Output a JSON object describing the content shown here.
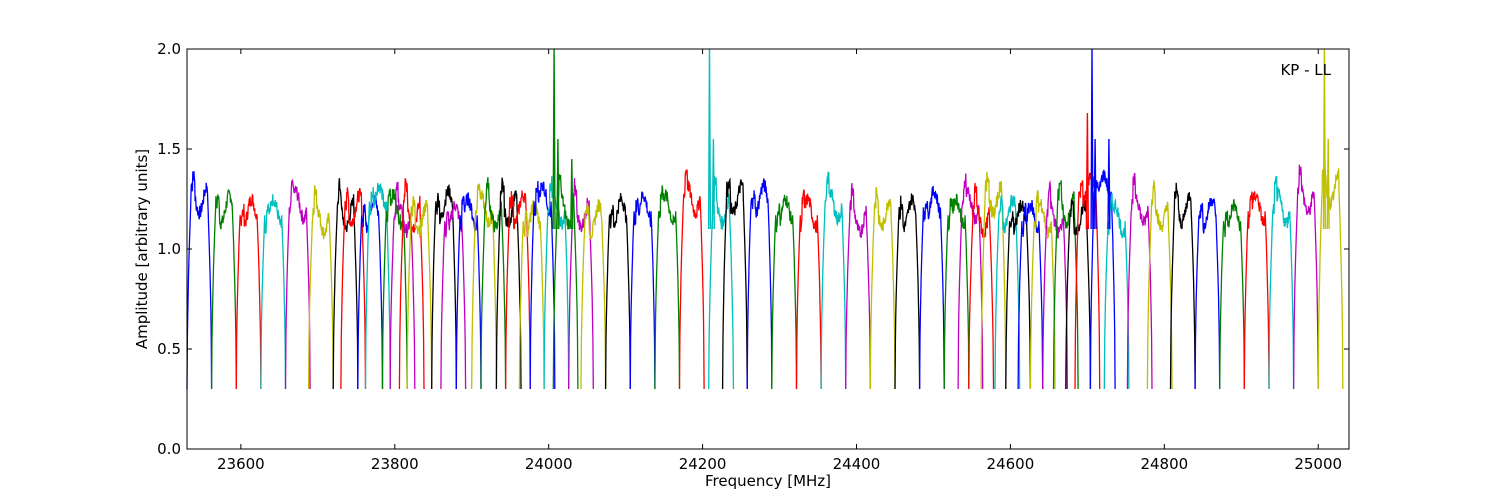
{
  "chart_data": {
    "type": "line",
    "title": "",
    "annotation": "KP - LL",
    "xlabel": "Frequency [MHz]",
    "ylabel": "Amplitude [arbitrary units]",
    "xlim": [
      23530,
      25040
    ],
    "ylim": [
      0.0,
      2.0
    ],
    "xticks": [
      23600,
      23800,
      24000,
      24200,
      24400,
      24600,
      24800,
      25000
    ],
    "yticks": [
      0.0,
      0.5,
      1.0,
      1.5,
      2.0
    ],
    "xtick_labels": [
      "23600",
      "23800",
      "24000",
      "24200",
      "24400",
      "24600",
      "24800",
      "25000"
    ],
    "ytick_labels": [
      "0.0",
      "0.5",
      "1.0",
      "1.5",
      "2.0"
    ],
    "grid": false,
    "legend": "none",
    "channel_width_mhz": 32,
    "series": [
      {
        "color": "#0000ff",
        "start": 23530,
        "level": 1.25
      },
      {
        "color": "#008000",
        "start": 23562,
        "level": 1.2
      },
      {
        "color": "#ff0000",
        "start": 23594,
        "level": 1.18
      },
      {
        "color": "#00bfbf",
        "start": 23626,
        "level": 1.18
      },
      {
        "color": "#bf00bf",
        "start": 23658,
        "level": 1.22
      },
      {
        "color": "#bfbf00",
        "start": 23688,
        "level": 1.15
      },
      {
        "color": "#000000",
        "start": 23720,
        "level": 1.18
      },
      {
        "color": "#ff0000",
        "start": 23730,
        "level": 1.2
      },
      {
        "color": "#0000ff",
        "start": 23752,
        "level": 1.18
      },
      {
        "color": "#00bfbf",
        "start": 23762,
        "level": 1.25
      },
      {
        "color": "#008000",
        "start": 23784,
        "level": 1.2
      },
      {
        "color": "#bf00bf",
        "start": 23794,
        "level": 1.16
      },
      {
        "color": "#ff0000",
        "start": 23806,
        "level": 1.18
      },
      {
        "color": "#bfbf00",
        "start": 23816,
        "level": 1.15
      },
      {
        "color": "#000000",
        "start": 23848,
        "level": 1.22
      },
      {
        "color": "#bf00bf",
        "start": 23860,
        "level": 1.15
      },
      {
        "color": "#0000ff",
        "start": 23880,
        "level": 1.18
      },
      {
        "color": "#bfbf00",
        "start": 23900,
        "level": 1.2
      },
      {
        "color": "#008000",
        "start": 23912,
        "level": 1.18
      },
      {
        "color": "#000000",
        "start": 23932,
        "level": 1.2
      },
      {
        "color": "#ff0000",
        "start": 23944,
        "level": 1.2
      },
      {
        "color": "#bfbf00",
        "start": 23962,
        "level": 1.15
      },
      {
        "color": "#0000ff",
        "start": 23976,
        "level": 1.25
      },
      {
        "color": "#00bfbf",
        "start": 23994,
        "level": 1.2
      },
      {
        "color": "#008000",
        "start": 24006,
        "level": 1.2
      },
      {
        "color": "#bf00bf",
        "start": 24026,
        "level": 1.18
      },
      {
        "color": "#bfbf00",
        "start": 24042,
        "level": 1.15
      },
      {
        "color": "#000000",
        "start": 24074,
        "level": 1.18
      },
      {
        "color": "#0000ff",
        "start": 24106,
        "level": 1.2
      },
      {
        "color": "#008000",
        "start": 24138,
        "level": 1.2
      },
      {
        "color": "#ff0000",
        "start": 24170,
        "level": 1.25
      },
      {
        "color": "#00bfbf",
        "start": 24208,
        "level": 1.2
      },
      {
        "color": "#000000",
        "start": 24226,
        "level": 1.25
      },
      {
        "color": "#0000ff",
        "start": 24258,
        "level": 1.25
      },
      {
        "color": "#008000",
        "start": 24290,
        "level": 1.18
      },
      {
        "color": "#ff0000",
        "start": 24322,
        "level": 1.18
      },
      {
        "color": "#00bfbf",
        "start": 24354,
        "level": 1.22
      },
      {
        "color": "#bf00bf",
        "start": 24386,
        "level": 1.15
      },
      {
        "color": "#bfbf00",
        "start": 24418,
        "level": 1.18
      },
      {
        "color": "#000000",
        "start": 24450,
        "level": 1.18
      },
      {
        "color": "#0000ff",
        "start": 24482,
        "level": 1.22
      },
      {
        "color": "#008000",
        "start": 24514,
        "level": 1.18
      },
      {
        "color": "#bf00bf",
        "start": 24532,
        "level": 1.22
      },
      {
        "color": "#ff0000",
        "start": 24546,
        "level": 1.15
      },
      {
        "color": "#bfbf00",
        "start": 24562,
        "level": 1.25
      },
      {
        "color": "#00bfbf",
        "start": 24580,
        "level": 1.18
      },
      {
        "color": "#000000",
        "start": 24594,
        "level": 1.15
      },
      {
        "color": "#0000ff",
        "start": 24610,
        "level": 1.15
      },
      {
        "color": "#bfbf00",
        "start": 24626,
        "level": 1.15
      },
      {
        "color": "#bf00bf",
        "start": 24642,
        "level": 1.15
      },
      {
        "color": "#008000",
        "start": 24656,
        "level": 1.2
      },
      {
        "color": "#000000",
        "start": 24672,
        "level": 1.15
      },
      {
        "color": "#ff0000",
        "start": 24684,
        "level": 1.3
      },
      {
        "color": "#0000ff",
        "start": 24704,
        "level": 1.3
      },
      {
        "color": "#00bfbf",
        "start": 24722,
        "level": 1.15
      },
      {
        "color": "#bf00bf",
        "start": 24752,
        "level": 1.2
      },
      {
        "color": "#bfbf00",
        "start": 24778,
        "level": 1.18
      },
      {
        "color": "#000000",
        "start": 24808,
        "level": 1.2
      },
      {
        "color": "#0000ff",
        "start": 24840,
        "level": 1.18
      },
      {
        "color": "#008000",
        "start": 24872,
        "level": 1.15
      },
      {
        "color": "#ff0000",
        "start": 24904,
        "level": 1.2
      },
      {
        "color": "#00bfbf",
        "start": 24936,
        "level": 1.2
      },
      {
        "color": "#bf00bf",
        "start": 24968,
        "level": 1.25
      },
      {
        "color": "#bfbf00",
        "start": 25000,
        "level": 1.3
      }
    ],
    "spikes": [
      {
        "color": "#008000",
        "x": 24007,
        "y": 2.0
      },
      {
        "color": "#008000",
        "x": 24012,
        "y": 1.55
      },
      {
        "color": "#008000",
        "x": 24030,
        "y": 1.45
      },
      {
        "color": "#00bfbf",
        "x": 24209,
        "y": 2.0
      },
      {
        "color": "#00bfbf",
        "x": 24214,
        "y": 1.55
      },
      {
        "color": "#ff0000",
        "x": 24700,
        "y": 1.68
      },
      {
        "color": "#0000ff",
        "x": 24706,
        "y": 2.0
      },
      {
        "color": "#0000ff",
        "x": 24710,
        "y": 1.55
      },
      {
        "color": "#0000ff",
        "x": 24728,
        "y": 1.55
      },
      {
        "color": "#bfbf00",
        "x": 25008,
        "y": 2.0
      },
      {
        "color": "#bfbf00",
        "x": 25013,
        "y": 1.55
      }
    ]
  }
}
